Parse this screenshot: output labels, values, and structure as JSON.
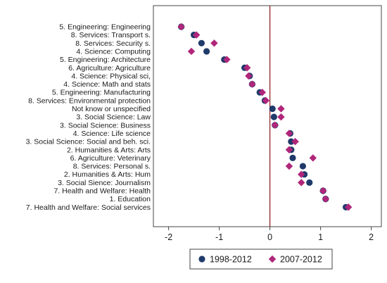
{
  "chart_data": {
    "type": "scatter",
    "xlim": [
      -2.3,
      2.2
    ],
    "xticks": [
      -2,
      -1,
      0,
      1,
      2
    ],
    "xtick_labels": [
      "-2",
      "-1",
      "0",
      "1",
      "2"
    ],
    "reference_line_x": 0,
    "grid": false,
    "legend_position": "bottom",
    "categories": [
      "5. Engineering: Engineering",
      "8. Services: Transport s.",
      "8. Services: Security s.",
      "4. Science: Computing",
      "5. Engineering: Architecture",
      "6. Agriculture: Agriculture",
      "4. Science: Physical sci,",
      "4. Science: Math and stats",
      "5. Engineering: Manufacturing",
      "8. Services: Environmental protection",
      "Not know or unspecified",
      "3. Social Science: Law",
      "3. Social Science: Business",
      "4. Science: Life science",
      "3. Social Science: Social and beh. sci.",
      "2. Humanities & Arts: Arts",
      "6. Agriculture: Veterinary",
      "8. Services: Personal s.",
      "2. Humanities & Arts: Hum",
      "3. Social Sience: Journalism",
      "7. Health and Welfare: Health",
      "1. Education",
      "7. Health and Welfare: Social services"
    ],
    "series": [
      {
        "name": "1998-2012",
        "color": "#1f3a6b",
        "marker": "circle",
        "values": [
          -1.75,
          -1.5,
          -1.35,
          -1.25,
          -0.9,
          -0.5,
          -0.4,
          -0.35,
          -0.2,
          -0.1,
          0.05,
          0.08,
          0.1,
          0.4,
          0.42,
          0.42,
          0.45,
          0.65,
          0.68,
          0.78,
          1.05,
          1.1,
          1.5
        ]
      },
      {
        "name": "2007-2012",
        "color": "#b0267a",
        "marker": "diamond",
        "values": [
          -1.75,
          -1.45,
          -1.1,
          -1.55,
          -0.85,
          -0.45,
          -0.42,
          -0.35,
          -0.15,
          -0.08,
          0.22,
          0.22,
          0.1,
          0.38,
          0.5,
          0.38,
          0.85,
          0.38,
          0.62,
          0.62,
          1.05,
          1.1,
          1.55
        ]
      }
    ]
  }
}
